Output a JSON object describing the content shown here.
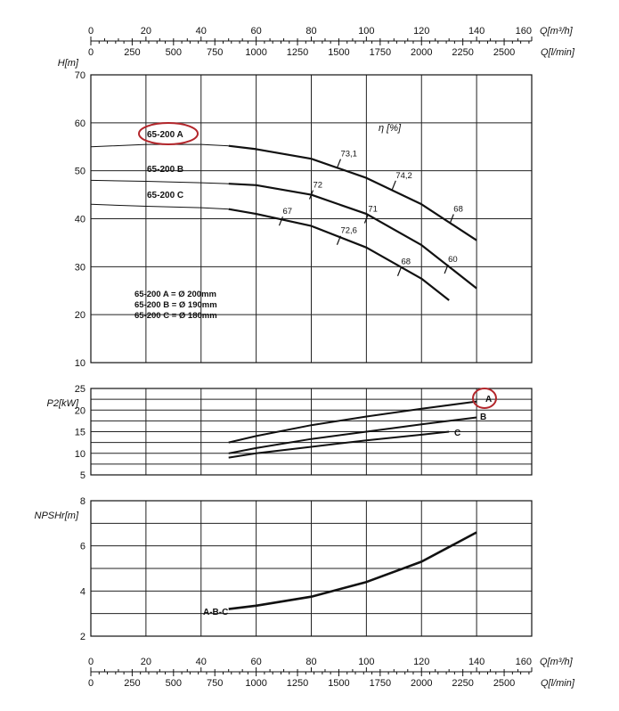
{
  "chart_data": [
    {
      "type": "line",
      "name": "head",
      "ylabel": "H[m]",
      "ylim": [
        10,
        70
      ],
      "yticks": [
        10,
        20,
        30,
        40,
        50,
        60,
        70
      ],
      "efficiency_axis_label": "η [%]",
      "series": [
        {
          "name": "65-200 A",
          "x": [
            0,
            20,
            40,
            50,
            60,
            80,
            100,
            120,
            140
          ],
          "y": [
            55,
            55.5,
            55.5,
            55.2,
            54.5,
            52.5,
            48.5,
            43,
            35.5
          ]
        },
        {
          "name": "65-200 B",
          "x": [
            0,
            20,
            40,
            50,
            60,
            80,
            100,
            120,
            140
          ],
          "y": [
            48,
            47.8,
            47.5,
            47.3,
            47,
            45,
            41,
            34.5,
            25.5
          ]
        },
        {
          "name": "65-200 C",
          "x": [
            0,
            20,
            40,
            50,
            60,
            80,
            100,
            120,
            130
          ],
          "y": [
            43,
            42.6,
            42.3,
            42,
            41,
            38.5,
            34,
            27.5,
            23
          ]
        }
      ],
      "efficiency_marks": [
        {
          "label": "73,1",
          "x": 90,
          "y": 51.5
        },
        {
          "label": "74,2",
          "x": 110,
          "y": 47
        },
        {
          "label": "68",
          "x": 131,
          "y": 40
        },
        {
          "label": "72",
          "x": 80,
          "y": 45
        },
        {
          "label": "71",
          "x": 100,
          "y": 40
        },
        {
          "label": "60",
          "x": 129,
          "y": 29.5
        },
        {
          "label": "67",
          "x": 69,
          "y": 39.5
        },
        {
          "label": "72,6",
          "x": 90,
          "y": 35.5
        },
        {
          "label": "68",
          "x": 112,
          "y": 29
        }
      ],
      "highlighted": "65-200 A",
      "legend": [
        "65-200 A = Ø 200mm",
        "65-200 B = Ø 190mm",
        "65-200 C = Ø 180mm"
      ]
    },
    {
      "type": "line",
      "name": "power",
      "ylabel": "P2[kW]",
      "ylim": [
        5,
        25
      ],
      "yticks": [
        5,
        10,
        15,
        20,
        25
      ],
      "series": [
        {
          "name": "A",
          "x": [
            50,
            60,
            80,
            100,
            120,
            140
          ],
          "y": [
            12.5,
            14,
            16.5,
            18.5,
            20.3,
            22
          ]
        },
        {
          "name": "B",
          "x": [
            50,
            60,
            80,
            100,
            120,
            140
          ],
          "y": [
            10,
            11.2,
            13.3,
            15,
            16.7,
            18.3
          ]
        },
        {
          "name": "C",
          "x": [
            50,
            60,
            80,
            100,
            120,
            130
          ],
          "y": [
            9,
            10,
            11.5,
            13,
            14.3,
            15
          ]
        }
      ],
      "highlighted": "A"
    },
    {
      "type": "line",
      "name": "npsh",
      "ylabel": "NPSHr[m]",
      "ylim": [
        2,
        8
      ],
      "yticks": [
        2,
        4,
        6,
        8
      ],
      "series": [
        {
          "name": "A-B-C",
          "x": [
            50,
            60,
            80,
            100,
            120,
            140
          ],
          "y": [
            3.2,
            3.35,
            3.75,
            4.4,
            5.3,
            6.6
          ]
        }
      ]
    }
  ],
  "axes": {
    "q_m3h": {
      "label": "Q[m³/h]",
      "range": [
        0,
        160
      ],
      "ticks": [
        "0",
        "20",
        "40",
        "60",
        "80",
        "100",
        "120",
        "140",
        "160"
      ]
    },
    "q_lmin": {
      "label": "Q[l/min]",
      "range": [
        0,
        2666.67
      ],
      "ticks": [
        "0",
        "250",
        "500",
        "750",
        "1000",
        "1250",
        "1500",
        "1750",
        "2000",
        "2250",
        "2500"
      ],
      "values": [
        0,
        250,
        500,
        750,
        1000,
        1250,
        1500,
        1750,
        2000,
        2250,
        2500
      ]
    }
  }
}
